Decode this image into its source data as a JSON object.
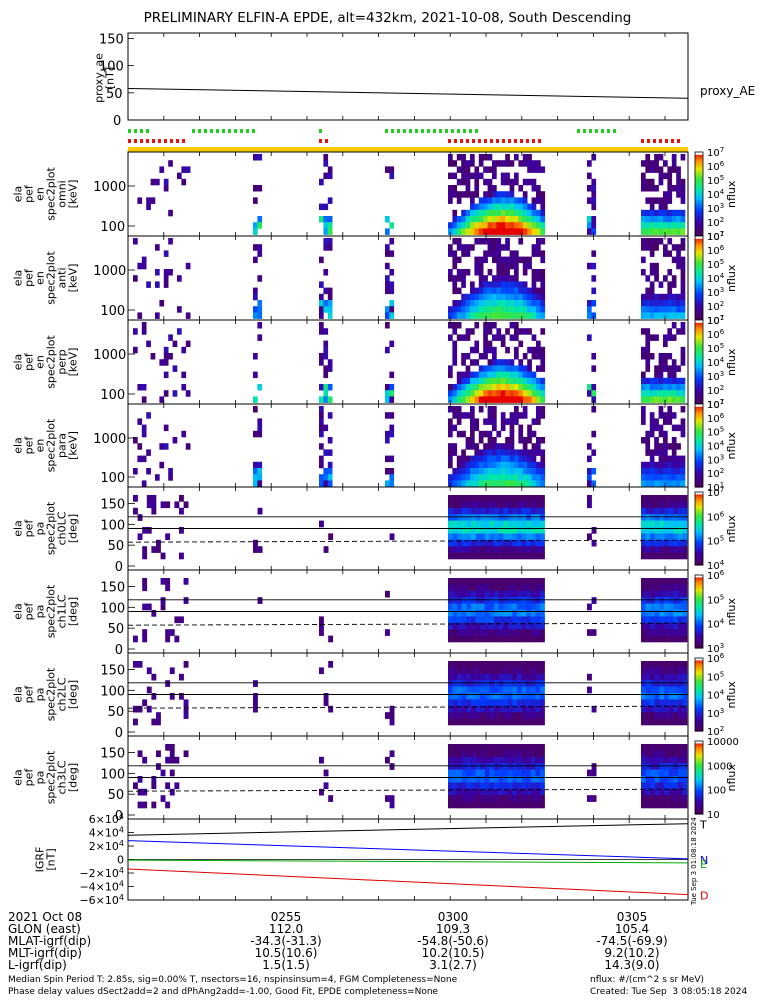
{
  "title": "PRELIMINARY ELFIN-A EPDE, alt=432km, 2021-10-08, South Descending",
  "chart_data": [
    {
      "type": "line",
      "name": "proxy_ae",
      "ylabel": "proxy_ae [nT]",
      "yticks": [
        "150",
        "100",
        "50",
        "0"
      ],
      "ylim": [
        0,
        160
      ],
      "series": [
        {
          "name": "proxy_AE",
          "x": [
            0.0,
            1.0
          ],
          "values": [
            58,
            40
          ]
        }
      ]
    },
    {
      "type": "heatmap",
      "name": "ela pef en spec2plot omni [keV]",
      "ylabel": "ela pef en spec2plot omni [keV]",
      "yticks": [
        "1000",
        "100"
      ],
      "colorbar": {
        "label": "nflux",
        "ticks": [
          "10^7",
          "10^6",
          "10^5",
          "10^4",
          "10^3",
          "10^2",
          "10^1"
        ]
      }
    },
    {
      "type": "heatmap",
      "name": "ela pef en spec2plot anti [keV]",
      "ylabel": "ela pef en spec2plot anti [keV]",
      "yticks": [
        "1000",
        "100"
      ],
      "colorbar": {
        "label": "nflux",
        "ticks": [
          "10^7",
          "10^6",
          "10^5",
          "10^4",
          "10^3",
          "10^2",
          "10^1"
        ]
      }
    },
    {
      "type": "heatmap",
      "name": "ela pef en spec2plot perp [keV]",
      "ylabel": "ela pef en spec2plot perp [keV]",
      "yticks": [
        "1000",
        "100"
      ],
      "colorbar": {
        "label": "nflux",
        "ticks": [
          "10^7",
          "10^6",
          "10^5",
          "10^4",
          "10^3",
          "10^2",
          "10^1"
        ]
      }
    },
    {
      "type": "heatmap",
      "name": "ela pef en spec2plot para [keV]",
      "ylabel": "ela pef en spec2plot para [keV]",
      "yticks": [
        "1000",
        "100"
      ],
      "colorbar": {
        "label": "nflux",
        "ticks": [
          "10^7",
          "10^6",
          "10^5",
          "10^4",
          "10^3",
          "10^2",
          "10^1"
        ]
      }
    },
    {
      "type": "heatmap",
      "name": "ela pef pa spec2plot ch0LC [deg]",
      "ylabel": "ela pef pa spec2plot ch0LC [deg]",
      "yticks": [
        "150",
        "100",
        "50",
        "0"
      ],
      "colorbar": {
        "label": "nflux",
        "ticks": [
          "10^7",
          "10^6",
          "10^5",
          "10^4"
        ]
      }
    },
    {
      "type": "heatmap",
      "name": "ela pef pa spec2plot ch1LC [deg]",
      "ylabel": "ela pef pa spec2plot ch1LC [deg]",
      "yticks": [
        "150",
        "100",
        "50",
        "0"
      ],
      "colorbar": {
        "label": "nflux",
        "ticks": [
          "10^6",
          "10^5",
          "10^4",
          "10^3"
        ]
      }
    },
    {
      "type": "heatmap",
      "name": "ela pef pa spec2plot ch2LC [deg]",
      "ylabel": "ela pef pa spec2plot ch2LC [deg]",
      "yticks": [
        "150",
        "100",
        "50",
        "0"
      ],
      "colorbar": {
        "label": "nflux",
        "ticks": [
          "10^6",
          "10^5",
          "10^4",
          "10^3",
          "10^2"
        ]
      }
    },
    {
      "type": "heatmap",
      "name": "ela pef pa spec2plot ch3LC [deg]",
      "ylabel": "ela pef pa spec2plot ch3LC [deg]",
      "yticks": [
        "150",
        "100",
        "50",
        "0"
      ],
      "colorbar": {
        "label": "nflux",
        "ticks": [
          "10000",
          "1000",
          "100",
          "10"
        ]
      }
    },
    {
      "type": "line",
      "name": "IGRF",
      "ylabel": "IGRF [nT]",
      "yticks": [
        "6×10^4",
        "4×10^4",
        "2×10^4",
        "0",
        "−2×10^4",
        "−4×10^4",
        "−6×10^4"
      ],
      "ylim": [
        -60000,
        60000
      ],
      "series": [
        {
          "name": "T",
          "color": "#000000",
          "x": [
            0.0,
            1.0
          ],
          "values": [
            36000,
            53000
          ]
        },
        {
          "name": "N",
          "color": "#0000ff",
          "x": [
            0.0,
            1.0
          ],
          "values": [
            28000,
            1000
          ]
        },
        {
          "name": "E",
          "color": "#00aa00",
          "x": [
            0.0,
            1.0
          ],
          "values": [
            -1000,
            -5000
          ]
        },
        {
          "name": "D",
          "color": "#dd0000",
          "x": [
            0.0,
            1.0
          ],
          "values": [
            -14000,
            -52000
          ]
        }
      ]
    }
  ],
  "footer": {
    "date": "2021 Oct 08",
    "rows": [
      {
        "label": "GLON (east)",
        "v1": "112.0",
        "v2": "109.3",
        "v3": "105.4"
      },
      {
        "label": "MLAT-igrf(dip)",
        "v1": "-34.3(-31.3)",
        "v2": "-54.8(-50.6)",
        "v3": "-74.5(-69.9)"
      },
      {
        "label": "MLT-igrf(dip)",
        "v1": "10.5(10.6)",
        "v2": "10.2(10.5)",
        "v3": "9.2(10.2)"
      },
      {
        "label": "L-igrf(dip)",
        "v1": "1.5(1.5)",
        "v2": "3.1(2.7)",
        "v3": "14.3(9.0)"
      }
    ],
    "times": [
      "0255",
      "0300",
      "0305"
    ],
    "note1": "Median Spin Period T: 2.85s, sig=0.00% T, nsectors=16, nspinsinsum=4, FGM Completeness=None",
    "note2": "Phase delay values dSect2add=2 and dPhAng2add=-1.00, Good Fit, EPDE completeness=None",
    "nflux_units": "nflux: #/(cm^2 s sr MeV)",
    "created": "Created: Tue Sep  3 08:05:18 2024",
    "side_stamp": "Tue Sep  3 01:08:18 2024"
  }
}
